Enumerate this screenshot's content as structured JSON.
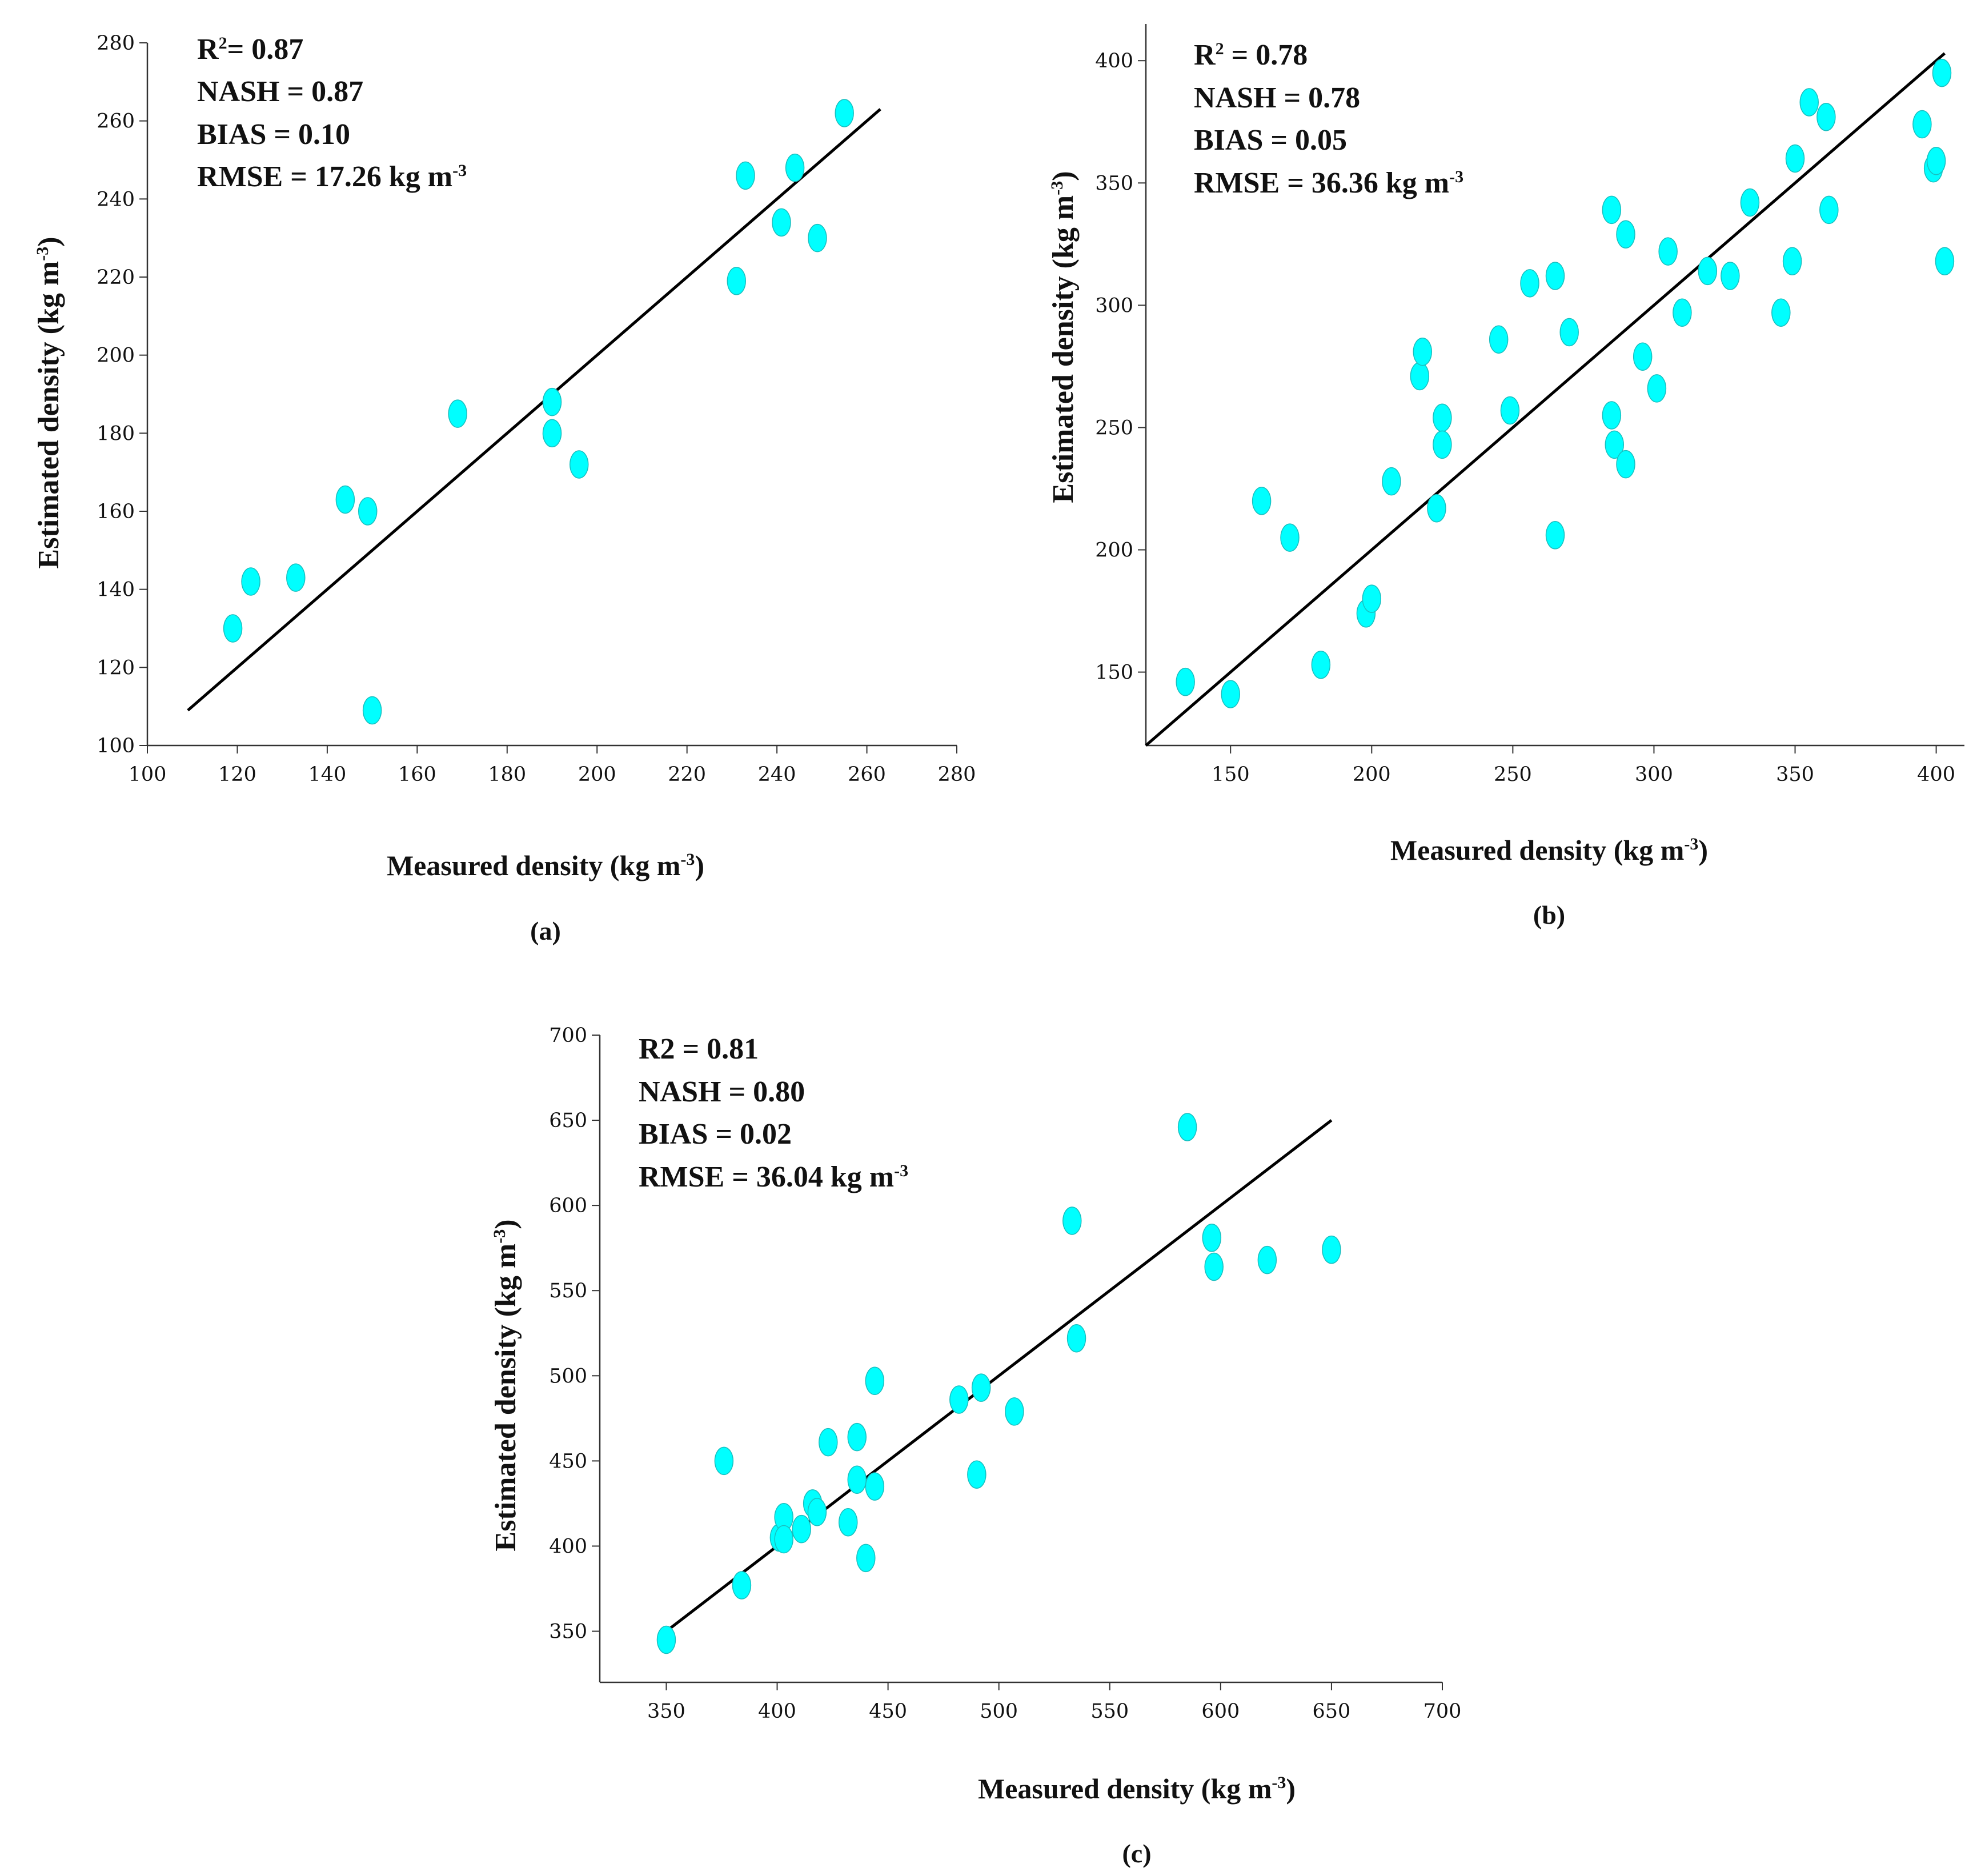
{
  "colors": {
    "point": "#00ffff",
    "line": "#000000",
    "axis": "#333333"
  },
  "chart_data": [
    {
      "type": "scatter",
      "caption": "(a)",
      "xlabel": "Measured density (kg m",
      "xlabel_sup": "-3",
      "xlabel_end": ")",
      "ylabel": "Estimated density (kg m",
      "ylabel_sup": "-3",
      "ylabel_end": ")",
      "xlim": [
        100,
        280
      ],
      "ylim": [
        100,
        280
      ],
      "xticks": [
        100,
        120,
        140,
        160,
        180,
        200,
        220,
        240,
        260,
        280
      ],
      "yticks": [
        100,
        120,
        140,
        160,
        180,
        200,
        220,
        240,
        260,
        280
      ],
      "stats": [
        {
          "text": "R",
          "sup": "2",
          "rest": "= 0.87"
        },
        {
          "text": "NASH = 0.87",
          "sup": "",
          "rest": ""
        },
        {
          "text": "BIAS = 0.10",
          "sup": "",
          "rest": ""
        },
        {
          "text": "RMSE = 17.26 kg m",
          "sup": "-3",
          "rest": ""
        }
      ],
      "fit_line": [
        [
          109,
          109
        ],
        [
          263,
          263
        ]
      ],
      "points": [
        [
          119,
          130
        ],
        [
          123,
          142
        ],
        [
          133,
          143
        ],
        [
          144,
          163
        ],
        [
          149,
          160
        ],
        [
          150,
          109
        ],
        [
          169,
          185
        ],
        [
          190,
          188
        ],
        [
          190,
          180
        ],
        [
          196,
          172
        ],
        [
          231,
          219
        ],
        [
          233,
          246
        ],
        [
          241,
          234
        ],
        [
          244,
          248
        ],
        [
          249,
          230
        ],
        [
          255,
          262
        ]
      ]
    },
    {
      "type": "scatter",
      "caption": "(b)",
      "xlabel": "Measured density (kg m",
      "xlabel_sup": "-3",
      "xlabel_end": ")",
      "ylabel": "Estimated density (kg m",
      "ylabel_sup": "-3",
      "ylabel_end": ")",
      "xlim": [
        120,
        410
      ],
      "ylim": [
        120,
        415
      ],
      "xticks": [
        150,
        200,
        250,
        300,
        350,
        400
      ],
      "yticks": [
        150,
        200,
        250,
        300,
        350,
        400
      ],
      "stats": [
        {
          "text": "R",
          "sup": "2",
          "rest": " = 0.78"
        },
        {
          "text": "NASH = 0.78",
          "sup": "",
          "rest": ""
        },
        {
          "text": "BIAS = 0.05",
          "sup": "",
          "rest": ""
        },
        {
          "text": "RMSE = 36.36 kg m",
          "sup": "-3",
          "rest": ""
        }
      ],
      "fit_line": [
        [
          120,
          120
        ],
        [
          403,
          403
        ]
      ],
      "points": [
        [
          134,
          146
        ],
        [
          150,
          141
        ],
        [
          161,
          220
        ],
        [
          171,
          205
        ],
        [
          182,
          153
        ],
        [
          198,
          174
        ],
        [
          200,
          180
        ],
        [
          207,
          228
        ],
        [
          217,
          271
        ],
        [
          218,
          281
        ],
        [
          223,
          217
        ],
        [
          225,
          254
        ],
        [
          225,
          243
        ],
        [
          245,
          286
        ],
        [
          249,
          257
        ],
        [
          256,
          309
        ],
        [
          265,
          312
        ],
        [
          265,
          206
        ],
        [
          270,
          289
        ],
        [
          285,
          255
        ],
        [
          286,
          243
        ],
        [
          285,
          339
        ],
        [
          290,
          329
        ],
        [
          290,
          235
        ],
        [
          296,
          279
        ],
        [
          301,
          266
        ],
        [
          305,
          322
        ],
        [
          310,
          297
        ],
        [
          319,
          314
        ],
        [
          327,
          312
        ],
        [
          334,
          342
        ],
        [
          345,
          297
        ],
        [
          349,
          318
        ],
        [
          350,
          360
        ],
        [
          355,
          383
        ],
        [
          361,
          377
        ],
        [
          362,
          339
        ],
        [
          395,
          374
        ],
        [
          399,
          356
        ],
        [
          400,
          359
        ],
        [
          402,
          395
        ],
        [
          403,
          318
        ]
      ]
    },
    {
      "type": "scatter",
      "caption": "(c)",
      "xlabel": "Measured density (kg m",
      "xlabel_sup": "-3",
      "xlabel_end": ")",
      "ylabel": "Estimated density (kg m",
      "ylabel_sup": "-3",
      "ylabel_end": ")",
      "xlim": [
        320,
        700
      ],
      "ylim": [
        320,
        700
      ],
      "xticks": [
        350,
        400,
        450,
        500,
        550,
        600,
        650,
        700
      ],
      "yticks": [
        350,
        400,
        450,
        500,
        550,
        600,
        650,
        700
      ],
      "stats": [
        {
          "text": "R2 = 0.81",
          "sup": "",
          "rest": ""
        },
        {
          "text": "NASH = 0.80",
          "sup": "",
          "rest": ""
        },
        {
          "text": "BIAS = 0.02",
          "sup": "",
          "rest": ""
        },
        {
          "text": "RMSE = 36.04 kg m",
          "sup": "-3",
          "rest": ""
        }
      ],
      "fit_line": [
        [
          347,
          347
        ],
        [
          650,
          650
        ]
      ],
      "points": [
        [
          350,
          345
        ],
        [
          376,
          450
        ],
        [
          384,
          377
        ],
        [
          401,
          405
        ],
        [
          403,
          417
        ],
        [
          403,
          404
        ],
        [
          411,
          410
        ],
        [
          416,
          425
        ],
        [
          418,
          420
        ],
        [
          423,
          461
        ],
        [
          432,
          414
        ],
        [
          436,
          464
        ],
        [
          436,
          439
        ],
        [
          440,
          393
        ],
        [
          444,
          497
        ],
        [
          444,
          435
        ],
        [
          482,
          486
        ],
        [
          490,
          442
        ],
        [
          492,
          493
        ],
        [
          507,
          479
        ],
        [
          533,
          591
        ],
        [
          535,
          522
        ],
        [
          585,
          646
        ],
        [
          596,
          581
        ],
        [
          597,
          564
        ],
        [
          621,
          568
        ],
        [
          650,
          574
        ]
      ]
    }
  ]
}
